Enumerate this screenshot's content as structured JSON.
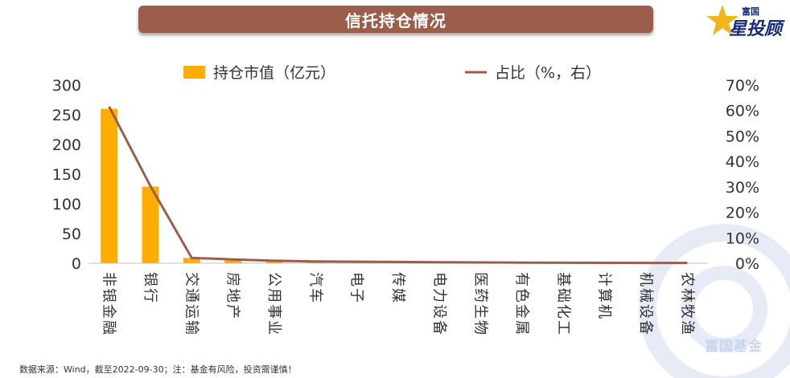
{
  "header": {
    "title": "信托持仓情况"
  },
  "logo": {
    "line1": "富国",
    "line2": "星投顾"
  },
  "watermark": {
    "text": "富国基金"
  },
  "footer": {
    "source": "数据来源：Wind，截至2022-09-30；注：基金有风险，投资需谨慎！"
  },
  "colors": {
    "bar": "#ffad00",
    "line": "#9b5e4a",
    "title_bg": "#9b5e4a",
    "logo": "#1a2a7a"
  },
  "chart_data": {
    "type": "bar",
    "categories": [
      "非银金融",
      "银行",
      "交通运输",
      "房地产",
      "公用事业",
      "汽车",
      "电子",
      "传媒",
      "电力设备",
      "医药生物",
      "有色金属",
      "基础化工",
      "计算机",
      "机械设备",
      "农林牧渔"
    ],
    "series": [
      {
        "name": "持仓市值（亿元）",
        "type": "bar",
        "axis": "left",
        "values": [
          260,
          129,
          9,
          6,
          4,
          3,
          2.5,
          2,
          1.5,
          1.2,
          1,
          0.8,
          0.6,
          0.5,
          0.4
        ]
      },
      {
        "name": "占比（%，右）",
        "type": "line",
        "axis": "right",
        "values": [
          61.5,
          30.3,
          2.1,
          1.5,
          1.0,
          0.7,
          0.6,
          0.5,
          0.4,
          0.3,
          0.25,
          0.2,
          0.15,
          0.12,
          0.1
        ]
      }
    ],
    "y_left": {
      "ticks": [
        "0",
        "50",
        "100",
        "150",
        "200",
        "250",
        "300"
      ],
      "ylim": [
        0,
        300
      ]
    },
    "y_right": {
      "ticks": [
        "0%",
        "10%",
        "20%",
        "30%",
        "40%",
        "50%",
        "60%",
        "70%"
      ],
      "ylim": [
        0,
        70
      ]
    },
    "legend": {
      "position": "top"
    },
    "grid": false
  }
}
